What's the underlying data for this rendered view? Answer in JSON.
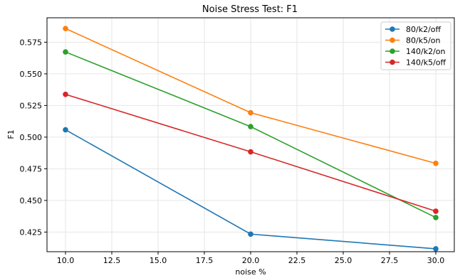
{
  "chart_data": {
    "type": "line",
    "title": "Noise Stress Test: F1",
    "xlabel": "noise %",
    "ylabel": "F1",
    "x": [
      10,
      20,
      30
    ],
    "xlim": [
      9.0,
      31.0
    ],
    "ylim": [
      0.4095,
      0.5943
    ],
    "xticks": [
      10.0,
      12.5,
      15.0,
      17.5,
      20.0,
      22.5,
      25.0,
      27.5,
      30.0
    ],
    "xtick_labels": [
      "10.0",
      "12.5",
      "15.0",
      "17.5",
      "20.0",
      "22.5",
      "25.0",
      "27.5",
      "30.0"
    ],
    "yticks": [
      0.425,
      0.45,
      0.475,
      0.5,
      0.525,
      0.55,
      0.575
    ],
    "ytick_labels": [
      "0.425",
      "0.450",
      "0.475",
      "0.500",
      "0.525",
      "0.550",
      "0.575"
    ],
    "grid": true,
    "legend_position": "top-right",
    "series": [
      {
        "name": "80/k2/off",
        "color": "#1f77b4",
        "values": [
          0.5058,
          0.4234,
          0.4118
        ]
      },
      {
        "name": "80/k5/on",
        "color": "#ff7f0e",
        "values": [
          0.5858,
          0.5193,
          0.4793
        ]
      },
      {
        "name": "140/k2/on",
        "color": "#2ca02c",
        "values": [
          0.5673,
          0.5083,
          0.4365
        ]
      },
      {
        "name": "140/k5/off",
        "color": "#d62728",
        "values": [
          0.5338,
          0.4884,
          0.4415
        ]
      }
    ]
  }
}
